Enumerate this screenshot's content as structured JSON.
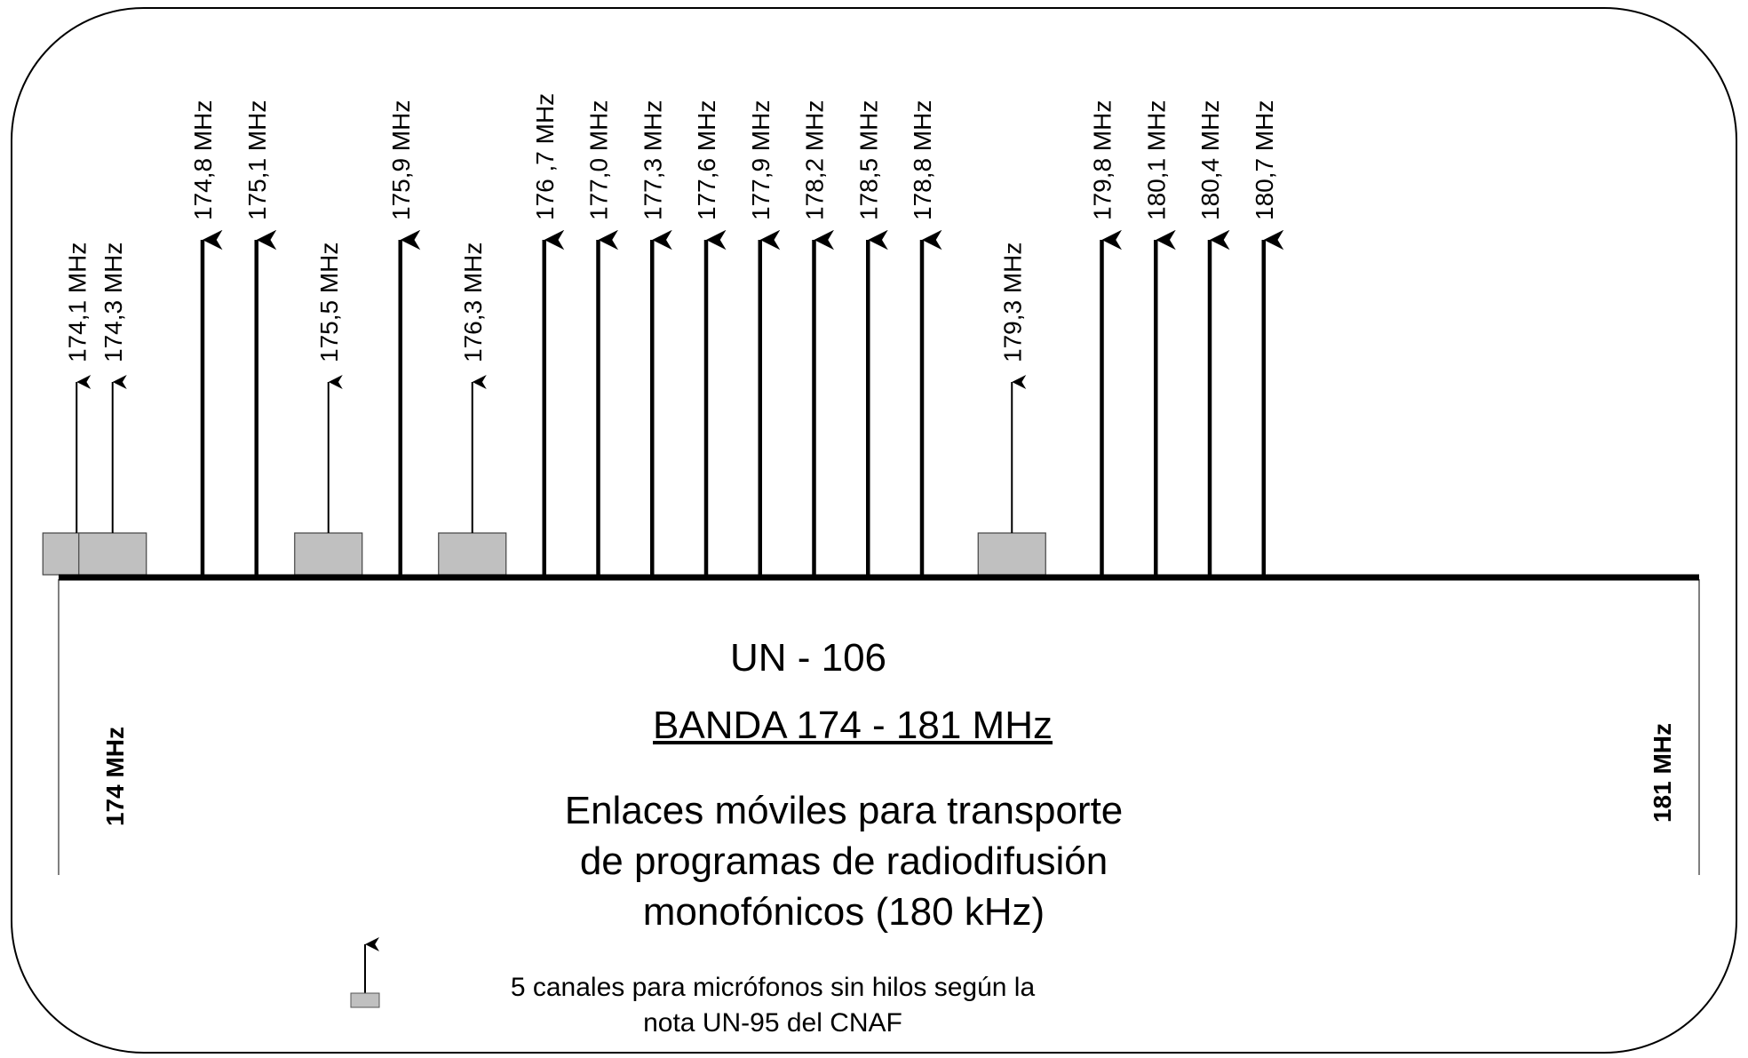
{
  "band_start_label": "174 MHz",
  "band_end_label": "181 MHz",
  "code_title": "UN - 106",
  "band_title": "BANDA 174 - 181 MHz",
  "description_lines": [
    "Enlaces móviles para transporte",
    "de programas de radiodifusión",
    "monofónicos (180 kHz)"
  ],
  "legend_lines": [
    "5 canales para micrófonos sin hilos según la",
    "nota UN-95 del CNAF"
  ],
  "colors": {
    "box_fill": "#c0c0c0",
    "line": "#000000"
  },
  "icons": {
    "arrow": "arrow-up-icon"
  },
  "chart_data": {
    "type": "diagram",
    "axis": {
      "min_mhz": 174,
      "max_mhz": 181
    },
    "channels": [
      {
        "freq": 174.1,
        "label": "174,1 MHz",
        "kind": "microphone"
      },
      {
        "freq": 174.3,
        "label": "174,3 MHz",
        "kind": "microphone"
      },
      {
        "freq": 174.8,
        "label": "174,8 MHz",
        "kind": "link"
      },
      {
        "freq": 175.1,
        "label": "175,1 MHz",
        "kind": "link"
      },
      {
        "freq": 175.5,
        "label": "175,5 MHz",
        "kind": "microphone"
      },
      {
        "freq": 175.9,
        "label": "175,9 MHz",
        "kind": "link"
      },
      {
        "freq": 176.3,
        "label": "176,3 MHz",
        "kind": "microphone"
      },
      {
        "freq": 176.7,
        "label": "176 ,7 MHz",
        "kind": "link"
      },
      {
        "freq": 177.0,
        "label": "177,0 MHz",
        "kind": "link"
      },
      {
        "freq": 177.3,
        "label": "177,3  MHz",
        "kind": "link"
      },
      {
        "freq": 177.6,
        "label": "177,6  MHz",
        "kind": "link"
      },
      {
        "freq": 177.9,
        "label": "177,9  MHz",
        "kind": "link"
      },
      {
        "freq": 178.2,
        "label": "178,2  MHz",
        "kind": "link"
      },
      {
        "freq": 178.5,
        "label": "178,5 MHz",
        "kind": "link"
      },
      {
        "freq": 178.8,
        "label": "178,8  MHz",
        "kind": "link"
      },
      {
        "freq": 179.3,
        "label": "179,3 MHz",
        "kind": "microphone"
      },
      {
        "freq": 179.8,
        "label": "179,8 MHz",
        "kind": "link"
      },
      {
        "freq": 180.1,
        "label": "180,1 MHz",
        "kind": "link"
      },
      {
        "freq": 180.4,
        "label": "180,4 MHz",
        "kind": "link"
      },
      {
        "freq": 180.7,
        "label": "180,7 MHz",
        "kind": "link"
      }
    ]
  }
}
